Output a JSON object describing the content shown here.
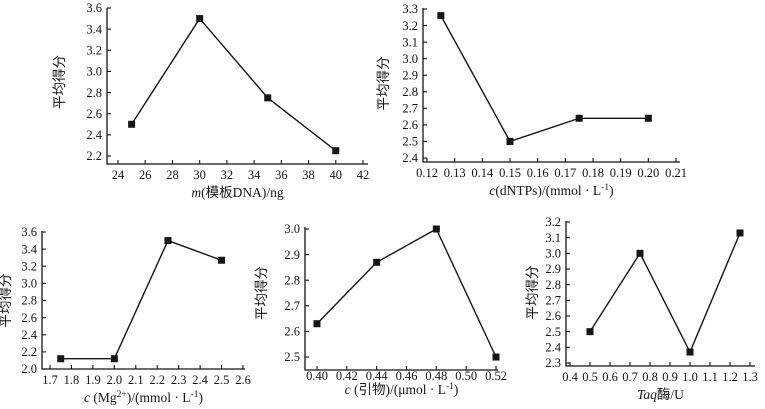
{
  "figure": {
    "background": "#fefefe",
    "ink": "#161616",
    "marker": "filled-square",
    "ylabel_shared": "平均得分"
  },
  "chart_data": [
    {
      "id": "template-dna",
      "type": "line",
      "title": "",
      "ylabel": "平均得分",
      "xlabel": "m(模板DNA)/ng",
      "xlabel_parts": [
        {
          "t": "m",
          "i": true
        },
        {
          "t": "(模板DNA)/ng"
        }
      ],
      "x": [
        25,
        30,
        35,
        40
      ],
      "y": [
        2.5,
        3.5,
        2.75,
        2.25
      ],
      "xticks": [
        "24",
        "26",
        "28",
        "30",
        "32",
        "34",
        "36",
        "38",
        "40",
        "42"
      ],
      "yticks": [
        "2.2",
        "2.4",
        "2.6",
        "2.8",
        "3.0",
        "3.2",
        "3.4",
        "3.6"
      ],
      "xlim": [
        24,
        42
      ],
      "ylim": [
        2.2,
        3.6
      ],
      "line_color": "#161616"
    },
    {
      "id": "dntps",
      "type": "line",
      "title": "",
      "ylabel": "平均得分",
      "xlabel": "c(dNTPs)/(mmol · L⁻¹)",
      "xlabel_parts": [
        {
          "t": "c",
          "i": true
        },
        {
          "t": "(dNTPs)/(mmol · L"
        },
        {
          "t": "-1",
          "s": true
        },
        {
          "t": ")"
        }
      ],
      "x": [
        0.125,
        0.15,
        0.175,
        0.2
      ],
      "y": [
        3.26,
        2.5,
        2.64,
        2.64
      ],
      "xticks": [
        "0.12",
        "0.13",
        "0.14",
        "0.15",
        "0.16",
        "0.17",
        "0.18",
        "0.19",
        "0.20",
        "0.21"
      ],
      "yticks": [
        "2.4",
        "2.5",
        "2.6",
        "2.7",
        "2.8",
        "2.9",
        "3.0",
        "3.1",
        "3.2",
        "3.3"
      ],
      "xlim": [
        0.12,
        0.21
      ],
      "ylim": [
        2.4,
        3.3
      ],
      "line_color": "#161616"
    },
    {
      "id": "mg2plus",
      "type": "line",
      "title": "",
      "ylabel": "平均得分",
      "xlabel": "c (Mg²⁺)/(mmol · L⁻¹)",
      "xlabel_parts": [
        {
          "t": "c",
          "i": true
        },
        {
          "t": " (Mg"
        },
        {
          "t": "2+",
          "s": true
        },
        {
          "t": ")/(mmol · L"
        },
        {
          "t": "-1",
          "s": true
        },
        {
          "t": ")"
        }
      ],
      "x": [
        1.75,
        2.0,
        2.25,
        2.5
      ],
      "y": [
        2.12,
        2.12,
        3.5,
        3.27
      ],
      "xticks": [
        "1.7",
        "1.8",
        "1.9",
        "2.0",
        "2.1",
        "2.2",
        "2.3",
        "2.4",
        "2.5",
        "2.6"
      ],
      "yticks": [
        "2.0",
        "2.2",
        "2.4",
        "2.6",
        "2.8",
        "3.0",
        "3.2",
        "3.4",
        "3.6"
      ],
      "xlim": [
        1.7,
        2.6
      ],
      "ylim": [
        2.0,
        3.6
      ],
      "line_color": "#161616"
    },
    {
      "id": "primer",
      "type": "line",
      "title": "",
      "ylabel": "平均得分",
      "xlabel": "c (引物)/(μmol · L⁻¹)",
      "xlabel_parts": [
        {
          "t": "c",
          "i": true
        },
        {
          "t": " (引物)/(μmol · L"
        },
        {
          "t": "-1",
          "s": true
        },
        {
          "t": ")"
        }
      ],
      "x": [
        0.4,
        0.44,
        0.48,
        0.52
      ],
      "y": [
        2.63,
        2.87,
        3.0,
        2.5
      ],
      "xticks": [
        "0.40",
        "0.42",
        "0.44",
        "0.46",
        "0.48",
        "0.50",
        "0.52"
      ],
      "yticks": [
        "2.5",
        "2.6",
        "2.7",
        "2.8",
        "2.9",
        "3.0"
      ],
      "xlim": [
        0.4,
        0.52
      ],
      "ylim": [
        2.5,
        3.0
      ],
      "line_color": "#161616"
    },
    {
      "id": "taq",
      "type": "line",
      "title": "",
      "ylabel": "平均得分",
      "xlabel": "Taq酶/U",
      "xlabel_parts": [
        {
          "t": "Taq",
          "i": true
        },
        {
          "t": "酶/U"
        }
      ],
      "x": [
        0.5,
        0.75,
        1.0,
        1.25
      ],
      "y": [
        2.5,
        3.0,
        2.37,
        3.13
      ],
      "xticks": [
        "0.4",
        "0.5",
        "0.6",
        "0.7",
        "0.8",
        "0.9",
        "1.0",
        "1.1",
        "1.2",
        "1.3"
      ],
      "yticks": [
        "2.3",
        "2.4",
        "2.5",
        "2.6",
        "2.7",
        "2.8",
        "2.9",
        "3.0",
        "3.1",
        "3.2"
      ],
      "xlim": [
        0.4,
        1.3
      ],
      "ylim": [
        2.3,
        3.2
      ],
      "line_color": "#161616"
    }
  ]
}
